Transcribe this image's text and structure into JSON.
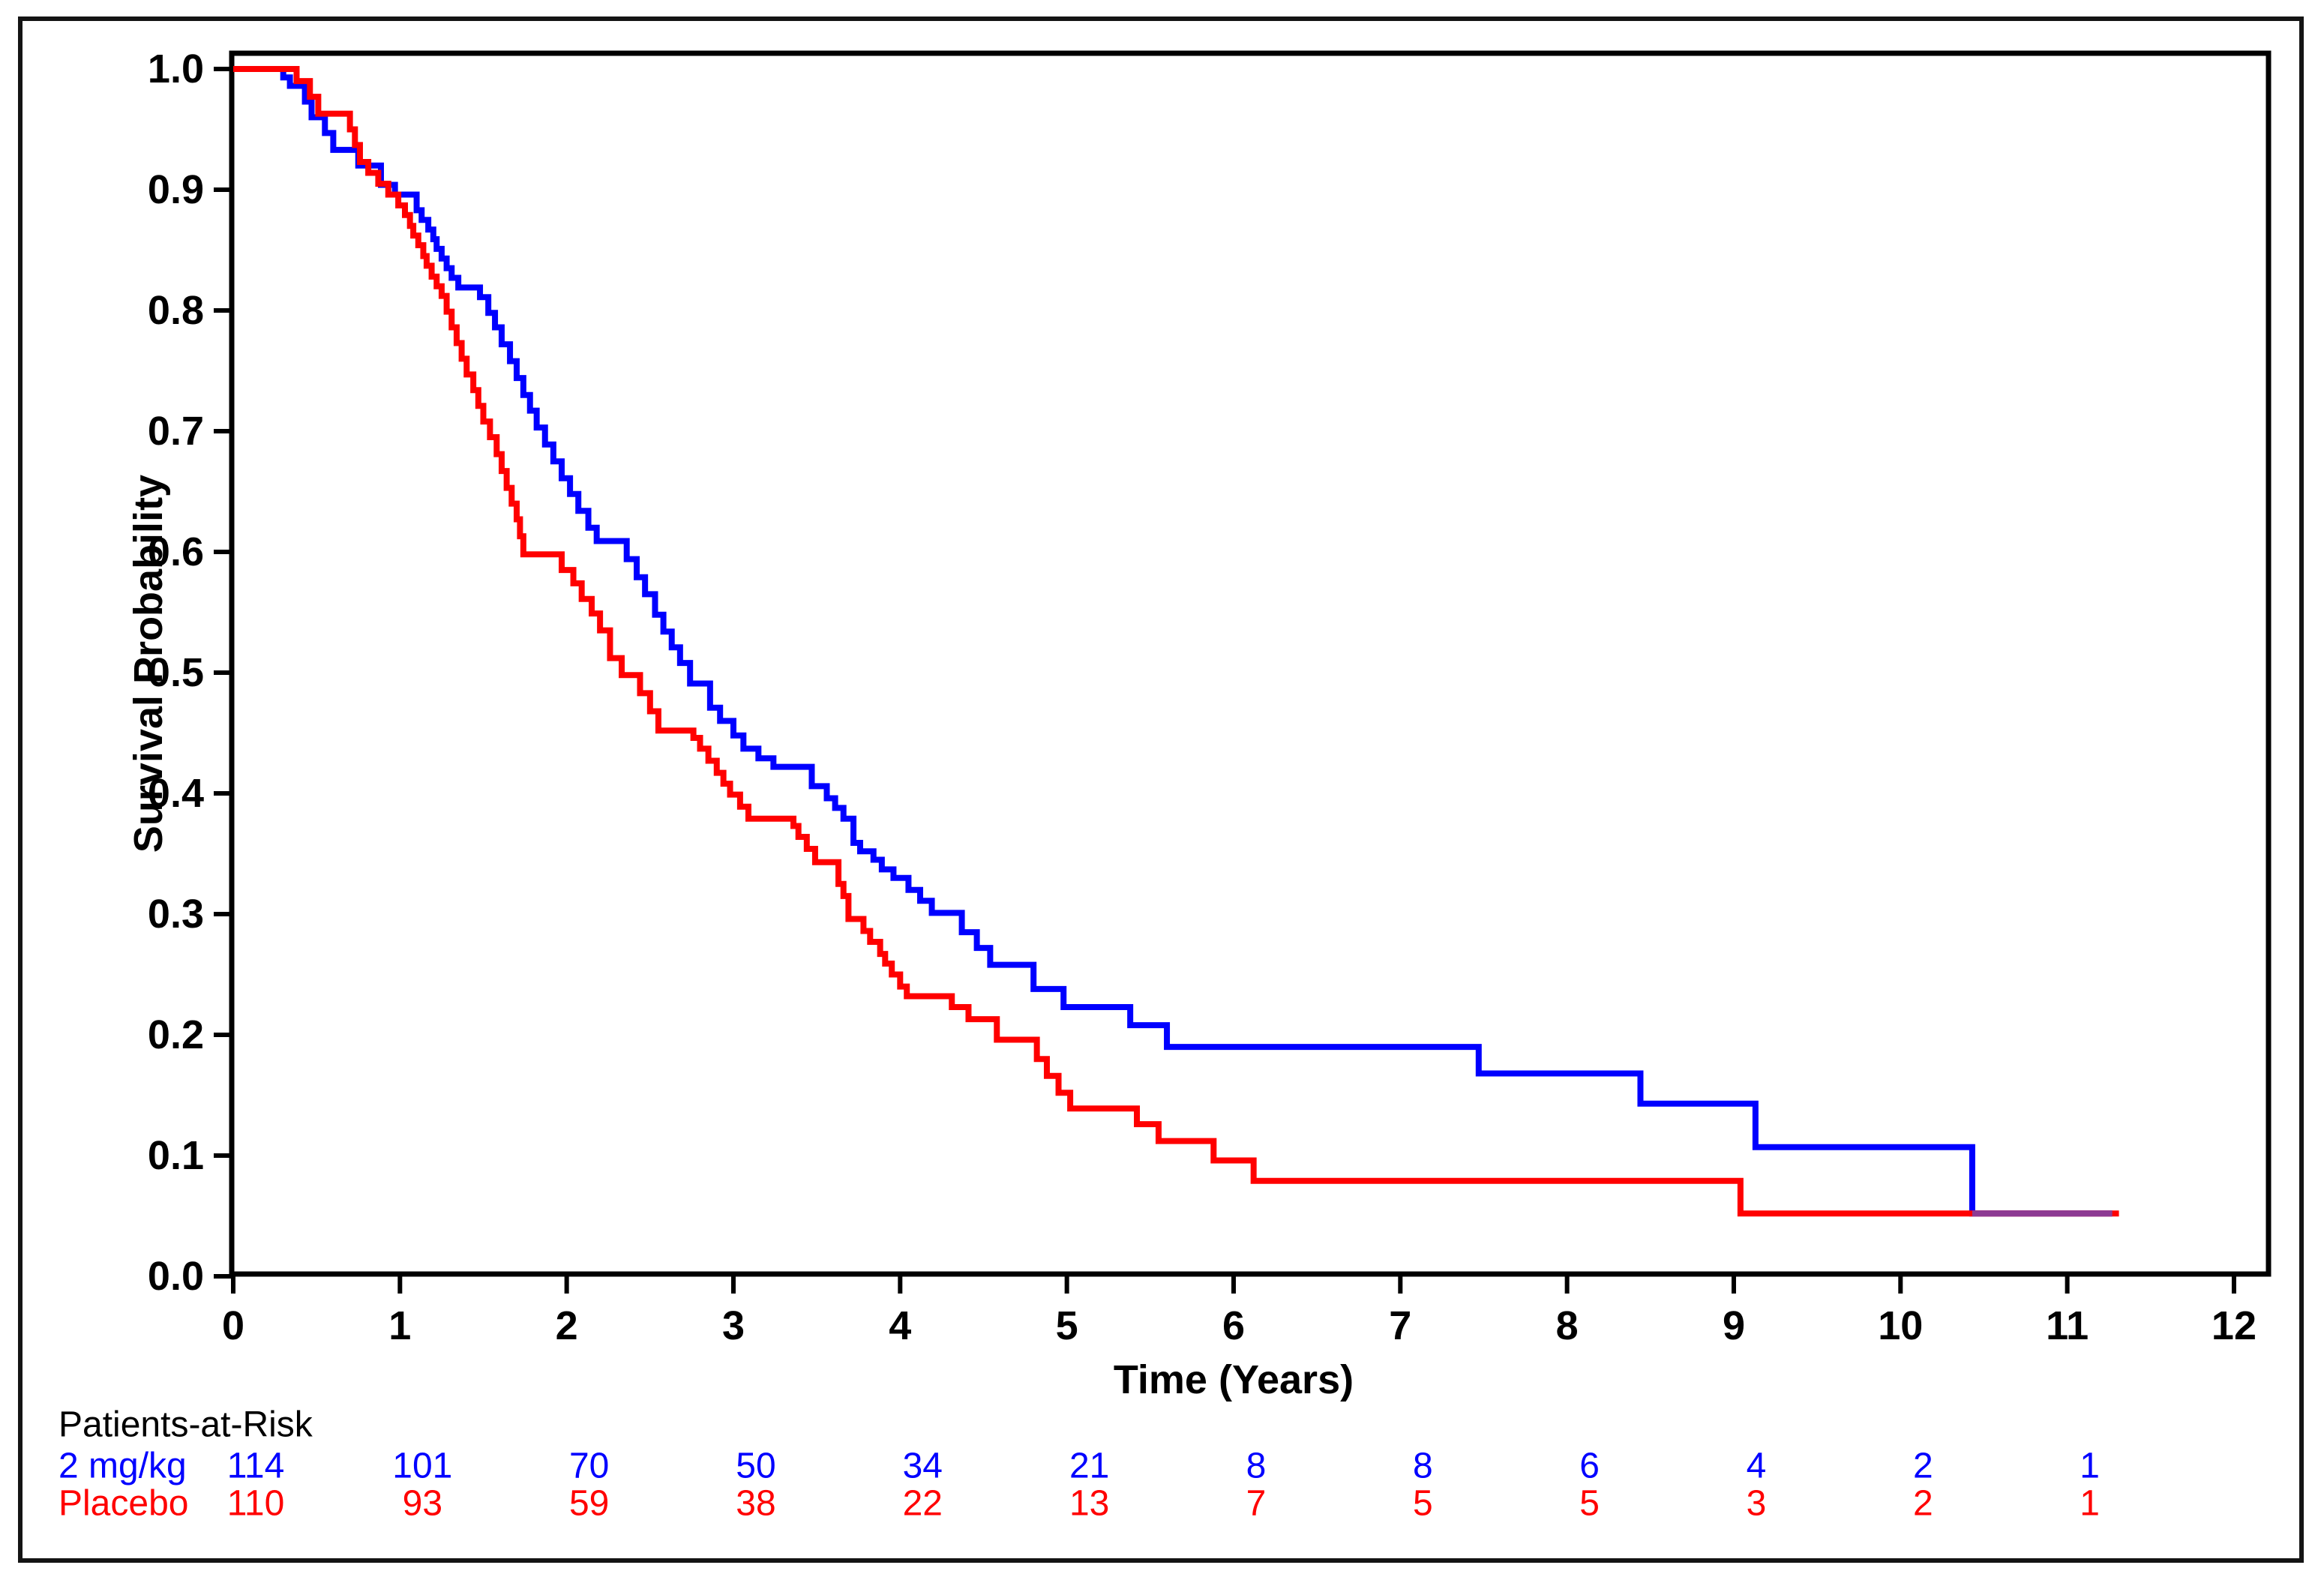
{
  "chart_data": {
    "type": "line",
    "subtype": "kaplan-meier-step",
    "title": "",
    "xlabel": "Time (Years)",
    "ylabel": "Survival Probability",
    "xlim": [
      0,
      12
    ],
    "ylim": [
      0.0,
      1.0
    ],
    "x_ticks": [
      0,
      1,
      2,
      3,
      4,
      5,
      6,
      7,
      8,
      9,
      10,
      11,
      12
    ],
    "y_ticks": [
      0.0,
      0.1,
      0.2,
      0.3,
      0.4,
      0.5,
      0.6,
      0.7,
      0.8,
      0.9,
      1.0
    ],
    "grid": false,
    "legend_position": "none",
    "axis_color": "#000000",
    "series": [
      {
        "name": "2 mg/kg",
        "color": "#0000FF",
        "points": [
          [
            0,
            1.0
          ],
          [
            0.3,
            0.993
          ],
          [
            0.34,
            0.986
          ],
          [
            0.43,
            0.973
          ],
          [
            0.47,
            0.96
          ],
          [
            0.55,
            0.947
          ],
          [
            0.6,
            0.933
          ],
          [
            0.75,
            0.92
          ],
          [
            0.886,
            0.904
          ],
          [
            0.97,
            0.896
          ],
          [
            1.1,
            0.883
          ],
          [
            1.13,
            0.875
          ],
          [
            1.17,
            0.867
          ],
          [
            1.2,
            0.859
          ],
          [
            1.22,
            0.851
          ],
          [
            1.25,
            0.843
          ],
          [
            1.28,
            0.835
          ],
          [
            1.31,
            0.827
          ],
          [
            1.35,
            0.819
          ],
          [
            1.48,
            0.811
          ],
          [
            1.53,
            0.798
          ],
          [
            1.57,
            0.786
          ],
          [
            1.61,
            0.772
          ],
          [
            1.66,
            0.758
          ],
          [
            1.7,
            0.744
          ],
          [
            1.74,
            0.73
          ],
          [
            1.78,
            0.717
          ],
          [
            1.82,
            0.703
          ],
          [
            1.87,
            0.689
          ],
          [
            1.92,
            0.675
          ],
          [
            1.97,
            0.661
          ],
          [
            2.02,
            0.648
          ],
          [
            2.07,
            0.634
          ],
          [
            2.13,
            0.62
          ],
          [
            2.18,
            0.609
          ],
          [
            2.36,
            0.594
          ],
          [
            2.42,
            0.579
          ],
          [
            2.47,
            0.565
          ],
          [
            2.53,
            0.548
          ],
          [
            2.58,
            0.534
          ],
          [
            2.63,
            0.521
          ],
          [
            2.68,
            0.508
          ],
          [
            2.74,
            0.491
          ],
          [
            2.86,
            0.471
          ],
          [
            2.92,
            0.46
          ],
          [
            3.0,
            0.448
          ],
          [
            3.06,
            0.437
          ],
          [
            3.15,
            0.429
          ],
          [
            3.24,
            0.422
          ],
          [
            3.47,
            0.406
          ],
          [
            3.56,
            0.396
          ],
          [
            3.61,
            0.388
          ],
          [
            3.66,
            0.379
          ],
          [
            3.72,
            0.359
          ],
          [
            3.76,
            0.352
          ],
          [
            3.84,
            0.345
          ],
          [
            3.89,
            0.337
          ],
          [
            3.96,
            0.33
          ],
          [
            4.05,
            0.32
          ],
          [
            4.12,
            0.311
          ],
          [
            4.19,
            0.301
          ],
          [
            4.37,
            0.285
          ],
          [
            4.46,
            0.272
          ],
          [
            4.54,
            0.258
          ],
          [
            4.8,
            0.238
          ],
          [
            4.98,
            0.223
          ],
          [
            5.38,
            0.208
          ],
          [
            5.6,
            0.19
          ],
          [
            7.47,
            0.168
          ],
          [
            8.44,
            0.143
          ],
          [
            9.13,
            0.107
          ],
          [
            10.43,
            0.052
          ],
          [
            11.27,
            0.052
          ]
        ]
      },
      {
        "name": "Placebo",
        "color": "#FF0000",
        "points": [
          [
            0,
            1.0
          ],
          [
            0.38,
            0.99
          ],
          [
            0.46,
            0.977
          ],
          [
            0.51,
            0.963
          ],
          [
            0.7,
            0.95
          ],
          [
            0.73,
            0.937
          ],
          [
            0.76,
            0.923
          ],
          [
            0.81,
            0.914
          ],
          [
            0.87,
            0.905
          ],
          [
            0.93,
            0.896
          ],
          [
            0.99,
            0.887
          ],
          [
            1.03,
            0.879
          ],
          [
            1.06,
            0.87
          ],
          [
            1.08,
            0.862
          ],
          [
            1.11,
            0.854
          ],
          [
            1.14,
            0.845
          ],
          [
            1.16,
            0.837
          ],
          [
            1.19,
            0.828
          ],
          [
            1.22,
            0.82
          ],
          [
            1.25,
            0.812
          ],
          [
            1.28,
            0.799
          ],
          [
            1.31,
            0.786
          ],
          [
            1.34,
            0.773
          ],
          [
            1.37,
            0.76
          ],
          [
            1.4,
            0.747
          ],
          [
            1.44,
            0.734
          ],
          [
            1.47,
            0.721
          ],
          [
            1.5,
            0.708
          ],
          [
            1.54,
            0.695
          ],
          [
            1.58,
            0.681
          ],
          [
            1.61,
            0.667
          ],
          [
            1.64,
            0.653
          ],
          [
            1.67,
            0.64
          ],
          [
            1.7,
            0.627
          ],
          [
            1.72,
            0.613
          ],
          [
            1.74,
            0.598
          ],
          [
            1.97,
            0.585
          ],
          [
            2.04,
            0.574
          ],
          [
            2.09,
            0.561
          ],
          [
            2.15,
            0.549
          ],
          [
            2.2,
            0.535
          ],
          [
            2.26,
            0.512
          ],
          [
            2.33,
            0.498
          ],
          [
            2.44,
            0.483
          ],
          [
            2.5,
            0.468
          ],
          [
            2.55,
            0.452
          ],
          [
            2.76,
            0.446
          ],
          [
            2.8,
            0.437
          ],
          [
            2.85,
            0.427
          ],
          [
            2.9,
            0.417
          ],
          [
            2.94,
            0.408
          ],
          [
            2.98,
            0.399
          ],
          [
            3.04,
            0.389
          ],
          [
            3.09,
            0.379
          ],
          [
            3.36,
            0.373
          ],
          [
            3.39,
            0.364
          ],
          [
            3.44,
            0.354
          ],
          [
            3.49,
            0.343
          ],
          [
            3.63,
            0.325
          ],
          [
            3.66,
            0.315
          ],
          [
            3.69,
            0.296
          ],
          [
            3.78,
            0.286
          ],
          [
            3.82,
            0.277
          ],
          [
            3.88,
            0.267
          ],
          [
            3.91,
            0.259
          ],
          [
            3.95,
            0.25
          ],
          [
            4.0,
            0.24
          ],
          [
            4.04,
            0.232
          ],
          [
            4.31,
            0.223
          ],
          [
            4.41,
            0.213
          ],
          [
            4.58,
            0.196
          ],
          [
            4.82,
            0.18
          ],
          [
            4.88,
            0.166
          ],
          [
            4.95,
            0.152
          ],
          [
            5.02,
            0.139
          ],
          [
            5.42,
            0.126
          ],
          [
            5.55,
            0.112
          ],
          [
            5.88,
            0.096
          ],
          [
            6.12,
            0.079
          ],
          [
            9.04,
            0.052
          ],
          [
            11.31,
            0.052
          ]
        ]
      }
    ],
    "overlap_segment": {
      "start": 10.43,
      "end": 11.27,
      "p": 0.052,
      "color": "#8D3A93"
    }
  },
  "at_risk": {
    "header": "Patients-at-Risk",
    "time_points": [
      0,
      1,
      2,
      3,
      4,
      5,
      6,
      7,
      8,
      9,
      10,
      11
    ],
    "rows": [
      {
        "label": "2 mg/kg",
        "color": "#0000FF",
        "values": [
          114,
          101,
          70,
          50,
          34,
          21,
          8,
          8,
          6,
          4,
          2,
          1
        ]
      },
      {
        "label": "Placebo",
        "color": "#FF0000",
        "values": [
          110,
          93,
          59,
          38,
          22,
          13,
          7,
          5,
          5,
          3,
          2,
          1
        ]
      }
    ]
  }
}
